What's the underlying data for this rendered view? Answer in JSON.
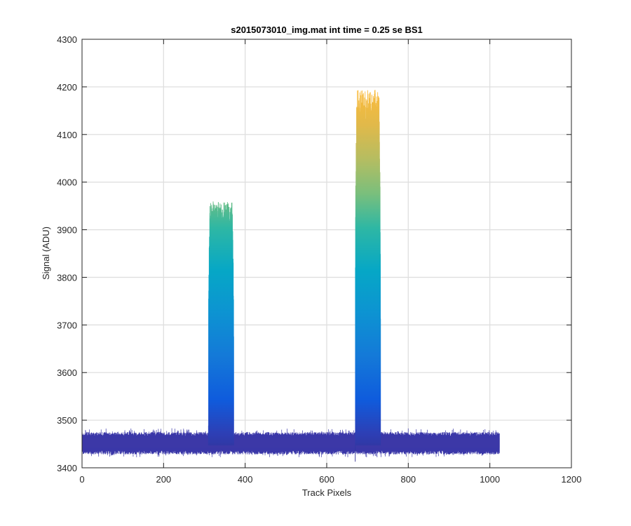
{
  "chart_data": {
    "type": "area",
    "title": "s2015073010_img.mat int time = 0.25 se   BS1",
    "xlabel": "Track Pixels",
    "ylabel": "Signal (ADU)",
    "xlim": [
      0,
      1200
    ],
    "ylim": [
      3400,
      4300
    ],
    "xticks": [
      0,
      200,
      400,
      600,
      800,
      1000,
      1200
    ],
    "yticks": [
      3400,
      3500,
      3600,
      3700,
      3800,
      3900,
      4000,
      4100,
      4200,
      4300
    ],
    "xtick_labels": [
      "0",
      "200",
      "400",
      "600",
      "800",
      "1000",
      "1200"
    ],
    "ytick_labels": [
      "3400",
      "3500",
      "3600",
      "3700",
      "3800",
      "3900",
      "4000",
      "4100",
      "4200",
      "4300"
    ],
    "grid": true,
    "colormap": "parula",
    "baseline": {
      "x_range": [
        0,
        1024
      ],
      "low": 3428,
      "high": 3475,
      "mean": 3452
    },
    "peaks": [
      {
        "x_start": 310,
        "x_end": 372,
        "peak_low": 3490,
        "peak_high": 3960
      },
      {
        "x_start": 670,
        "x_end": 732,
        "peak_low": 3490,
        "peak_high": 4195
      }
    ]
  }
}
